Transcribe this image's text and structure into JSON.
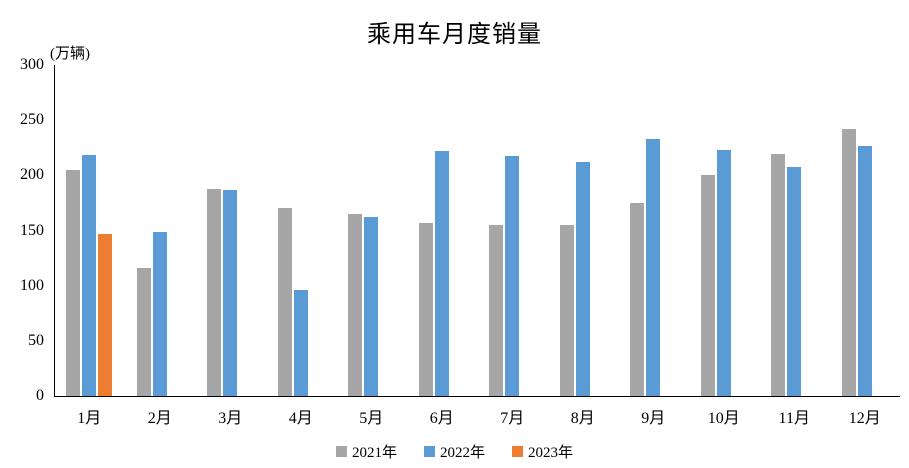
{
  "title": "乘用车月度销量",
  "unit_label": "(万辆)",
  "chart_data": {
    "type": "bar",
    "title": "乘用车月度销量",
    "xlabel": "",
    "ylabel": "(万辆)",
    "categories": [
      "1月",
      "2月",
      "3月",
      "4月",
      "5月",
      "6月",
      "7月",
      "8月",
      "9月",
      "10月",
      "11月",
      "12月"
    ],
    "series": [
      {
        "name": "2021年",
        "color": "#A6A6A6",
        "values": [
          204.5,
          115.6,
          187.4,
          170.4,
          164.6,
          156.9,
          155.1,
          155.2,
          175.1,
          200.7,
          219.2,
          242.2
        ]
      },
      {
        "name": "2022年",
        "color": "#5B9BD5",
        "values": [
          218.6,
          148.7,
          186.4,
          96.5,
          162.3,
          222.2,
          217.4,
          212.5,
          233.2,
          223.1,
          207.5,
          226.3
        ]
      },
      {
        "name": "2023年",
        "color": "#ED7D31",
        "values": [
          146.9,
          null,
          null,
          null,
          null,
          null,
          null,
          null,
          null,
          null,
          null,
          null
        ]
      }
    ],
    "ylim": [
      0,
      300
    ],
    "yticks": [
      0,
      50,
      100,
      150,
      200,
      250,
      300
    ],
    "grid": false,
    "legend_position": "bottom",
    "background": "#FFFFFF",
    "axis_color": "#000000"
  }
}
